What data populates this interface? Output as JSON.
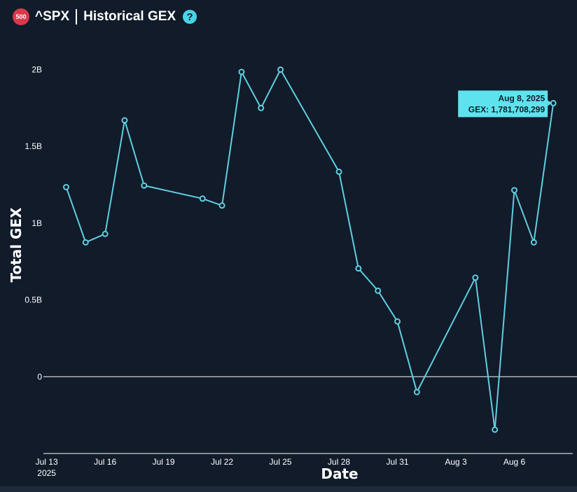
{
  "header": {
    "badge": "500",
    "ticker": "^SPX",
    "title": "Historical GEX",
    "help": "?"
  },
  "colors": {
    "background": "#111b2a",
    "line": "#5fcfe0",
    "marker": "#5fcfe0",
    "tooltip_bg": "#5ee3ee",
    "zero_line": "#ffffff",
    "badge": "#d9394a"
  },
  "tooltip": {
    "date": "Aug 8, 2025",
    "value": "GEX: 1,781,708,299"
  },
  "chart_data": {
    "type": "line",
    "xlabel": "Date",
    "ylabel": "Total GEX",
    "y_ticks": [
      {
        "value": 0,
        "label": "0"
      },
      {
        "value": 500000000,
        "label": "0.5B"
      },
      {
        "value": 1000000000,
        "label": "1B"
      },
      {
        "value": 1500000000,
        "label": "1.5B"
      },
      {
        "value": 2000000000,
        "label": "2B"
      }
    ],
    "x_ticks": [
      {
        "date": "2025-07-13",
        "label": "Jul 13",
        "sublabel": "2025"
      },
      {
        "date": "2025-07-16",
        "label": "Jul 16"
      },
      {
        "date": "2025-07-19",
        "label": "Jul 19"
      },
      {
        "date": "2025-07-22",
        "label": "Jul 22"
      },
      {
        "date": "2025-07-25",
        "label": "Jul 25"
      },
      {
        "date": "2025-07-28",
        "label": "Jul 28"
      },
      {
        "date": "2025-07-31",
        "label": "Jul 31"
      },
      {
        "date": "2025-08-03",
        "label": "Aug 3"
      },
      {
        "date": "2025-08-06",
        "label": "Aug 6"
      }
    ],
    "xlim": [
      "2025-07-12T20:00",
      "2025-08-09T00:00"
    ],
    "ylim": [
      -500000000,
      2180000000
    ],
    "zero_line": true,
    "series": [
      {
        "points": [
          {
            "x": "2025-07-14",
            "y": 1235000000
          },
          {
            "x": "2025-07-15",
            "y": 875000000
          },
          {
            "x": "2025-07-16",
            "y": 930000000
          },
          {
            "x": "2025-07-17",
            "y": 1670000000
          },
          {
            "x": "2025-07-18",
            "y": 1245000000
          },
          {
            "x": "2025-07-21",
            "y": 1160000000
          },
          {
            "x": "2025-07-22",
            "y": 1115000000
          },
          {
            "x": "2025-07-23",
            "y": 1985000000
          },
          {
            "x": "2025-07-24",
            "y": 1750000000
          },
          {
            "x": "2025-07-25",
            "y": 2000000000
          },
          {
            "x": "2025-07-28",
            "y": 1335000000
          },
          {
            "x": "2025-07-29",
            "y": 705000000
          },
          {
            "x": "2025-07-30",
            "y": 560000000
          },
          {
            "x": "2025-07-31",
            "y": 360000000
          },
          {
            "x": "2025-08-01",
            "y": -100000000
          },
          {
            "x": "2025-08-04",
            "y": 645000000
          },
          {
            "x": "2025-08-05",
            "y": -345000000
          },
          {
            "x": "2025-08-06",
            "y": 1215000000
          },
          {
            "x": "2025-08-07",
            "y": 875000000
          },
          {
            "x": "2025-08-08",
            "y": 1781708299
          }
        ]
      }
    ]
  }
}
